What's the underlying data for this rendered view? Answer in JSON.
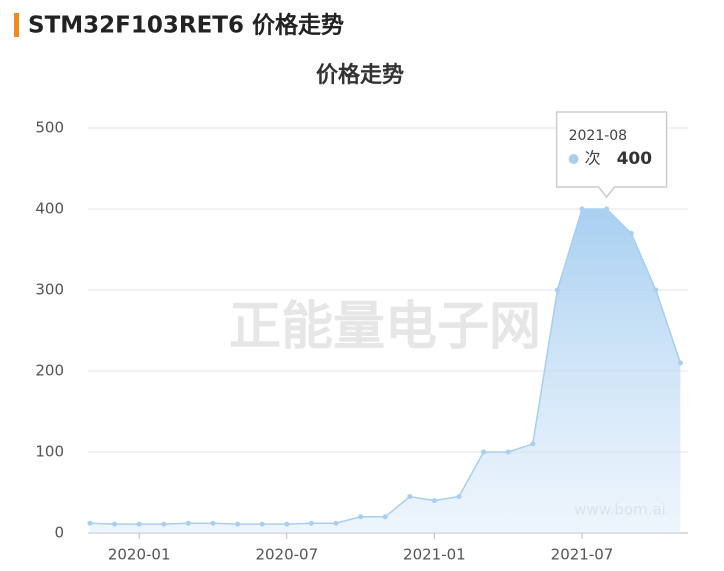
{
  "header": {
    "title": "STM32F103RET6 价格走势"
  },
  "chart_data": {
    "type": "area",
    "title": "价格走势",
    "categories": [
      null,
      null,
      "2020-01",
      null,
      null,
      null,
      null,
      null,
      "2020-07",
      null,
      null,
      null,
      null,
      null,
      "2021-01",
      null,
      null,
      null,
      null,
      null,
      "2021-07",
      "2021-08",
      null,
      null,
      null
    ],
    "series": [
      {
        "name": "次",
        "color": "#a8cff0",
        "values": [
          12,
          11,
          11,
          11,
          12,
          12,
          11,
          11,
          11,
          12,
          12,
          20,
          20,
          45,
          40,
          45,
          100,
          100,
          110,
          300,
          400,
          400,
          370,
          300,
          210
        ]
      }
    ],
    "ylim": [
      0,
      500
    ],
    "yticks": [
      0,
      100,
      200,
      300,
      400,
      500
    ],
    "grid": true,
    "watermarks": [
      "正能量电子网",
      "www.bom.ai"
    ]
  }
}
